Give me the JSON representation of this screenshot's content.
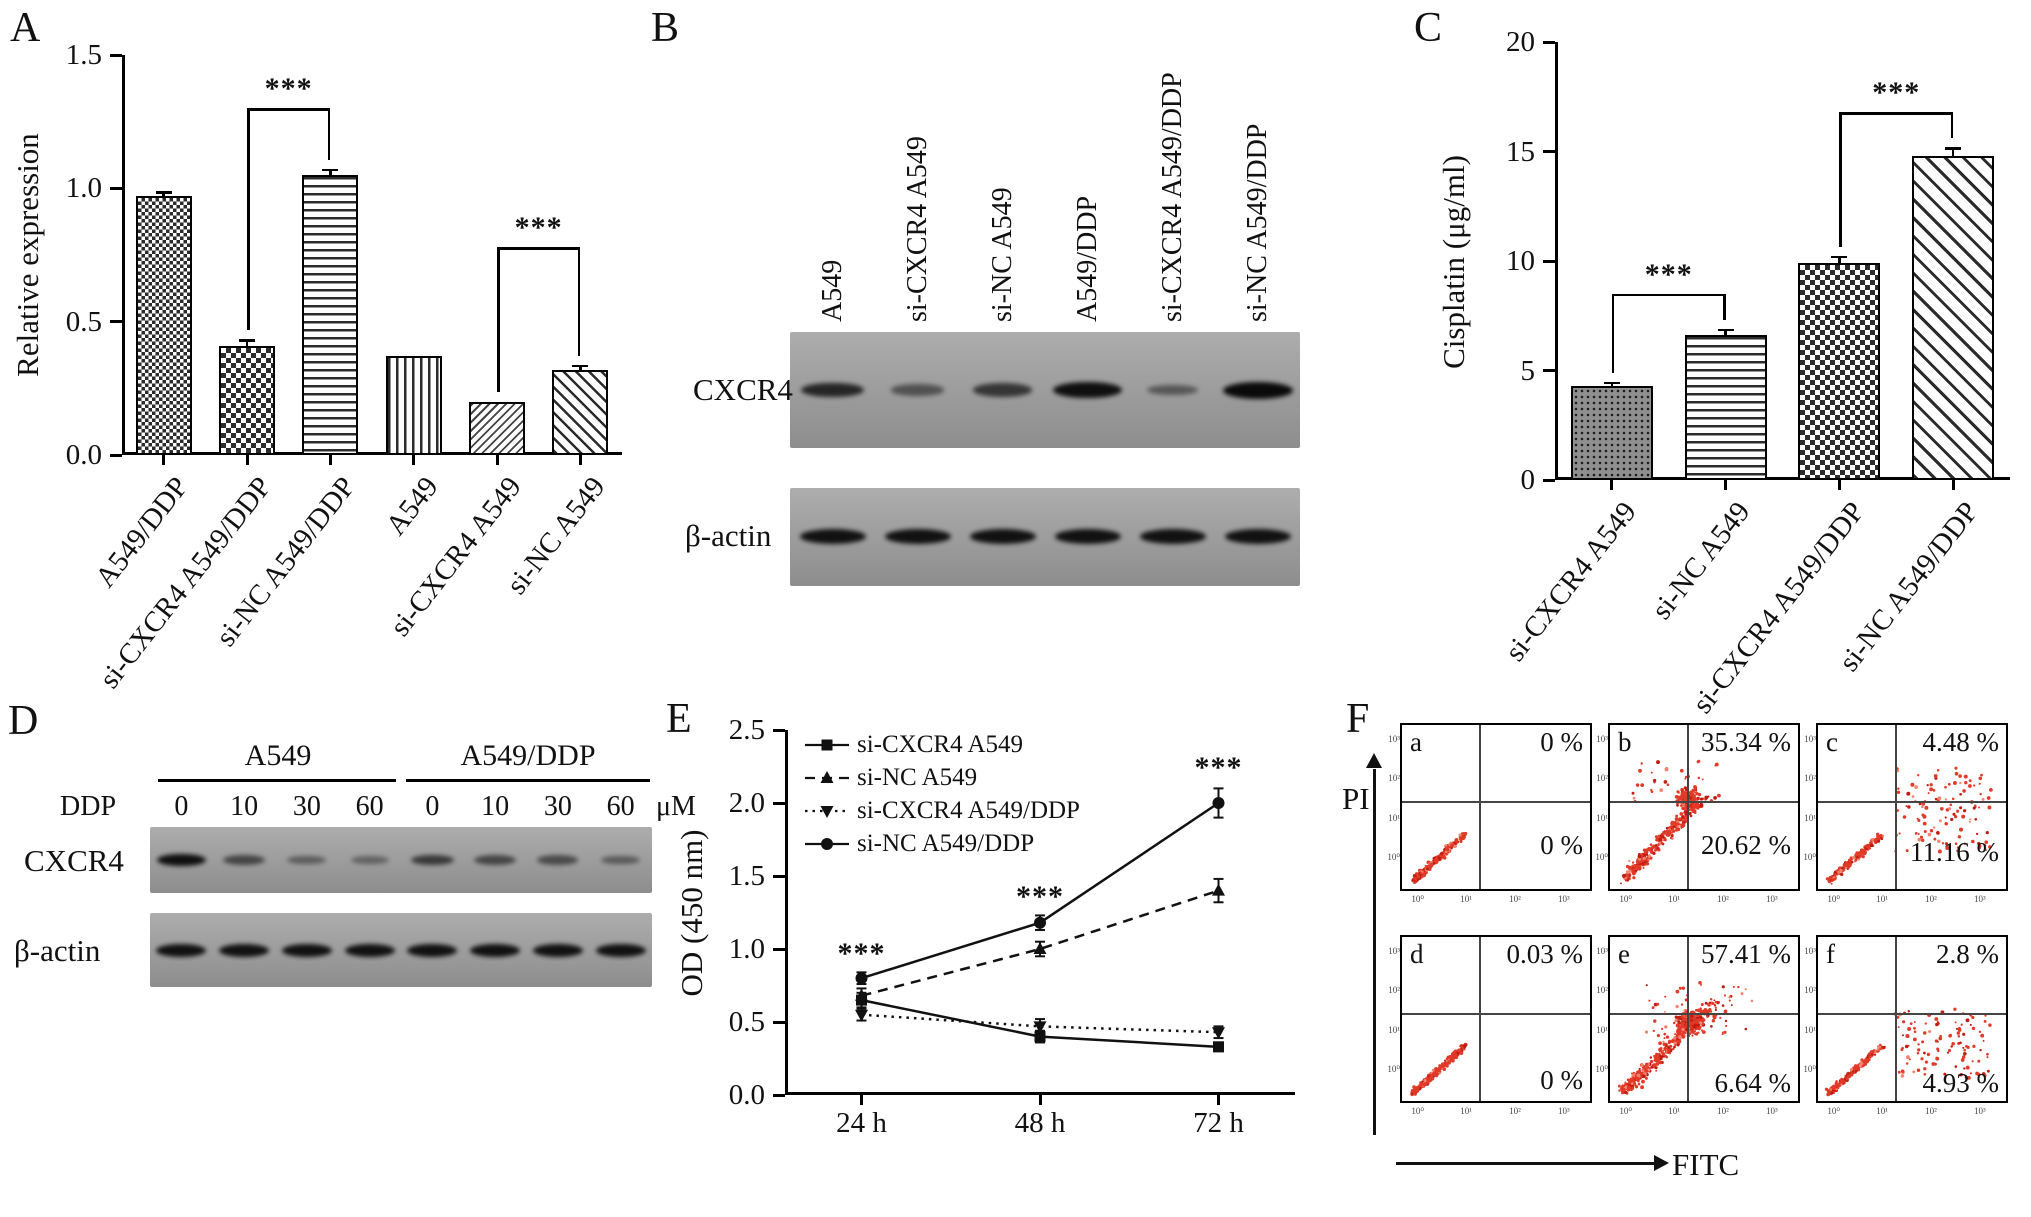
{
  "figure": {
    "panels": {
      "A": {
        "label": "A"
      },
      "B": {
        "label": "B"
      },
      "C": {
        "label": "C"
      },
      "D": {
        "label": "D"
      },
      "E": {
        "label": "E"
      },
      "F": {
        "label": "F"
      }
    }
  },
  "chart_data": [
    {
      "id": "A",
      "type": "bar",
      "ylabel": "Relative expression",
      "ylim": [
        0,
        1.5
      ],
      "ytick_labels": [
        "0.0",
        "0.5",
        "1.0",
        "1.5"
      ],
      "categories": [
        "A549/DDP",
        "si-CXCR4 A549/DDP",
        "si-NC A549/DDP",
        "A549",
        "si-CXCR4 A549",
        "si-NC A549"
      ],
      "values": [
        0.97,
        0.41,
        1.05,
        0.37,
        0.2,
        0.32
      ],
      "errors": [
        0.015,
        0.02,
        0.02,
        0,
        0,
        0.015
      ],
      "patterns": [
        "checker-fine",
        "checker",
        "hlines",
        "vlines",
        "diag-fine",
        "diag"
      ],
      "significance": [
        {
          "a": 1,
          "b": 2,
          "label": "***",
          "y": 1.3
        },
        {
          "a": 4,
          "b": 5,
          "label": "***",
          "y": 0.78
        }
      ]
    },
    {
      "id": "C",
      "type": "bar",
      "ylabel": "Cisplatin (μg/ml)",
      "ylim": [
        0,
        20
      ],
      "ytick_labels": [
        "0",
        "5",
        "10",
        "15",
        "20"
      ],
      "categories": [
        "si-CXCR4 A549",
        "si-NC A549",
        "si-CXCR4 A549/DDP",
        "si-NC A549/DDP"
      ],
      "values": [
        4.3,
        6.6,
        9.9,
        14.8
      ],
      "errors": [
        0.15,
        0.25,
        0.3,
        0.35
      ],
      "patterns": [
        "dots",
        "hlines",
        "checker",
        "diag-wide"
      ],
      "significance": [
        {
          "a": 0,
          "b": 1,
          "label": "***",
          "y": 8.5
        },
        {
          "a": 2,
          "b": 3,
          "label": "***",
          "y": 16.8
        }
      ]
    },
    {
      "id": "E",
      "type": "line",
      "ylabel": "OD (450 nm)",
      "ylim": [
        0,
        2.5
      ],
      "ytick_labels": [
        "0.0",
        "0.5",
        "1.0",
        "1.5",
        "2.0",
        "2.5"
      ],
      "x_categories": [
        "24 h",
        "48 h",
        "72 h"
      ],
      "series": [
        {
          "name": "si-CXCR4 A549",
          "marker": "square",
          "line": "solid",
          "values": [
            0.65,
            0.4,
            0.33
          ],
          "errors": [
            0.05,
            0.04,
            0.03
          ]
        },
        {
          "name": "si-NC A549",
          "marker": "triangle-up",
          "line": "dashed",
          "values": [
            0.68,
            1.0,
            1.4
          ],
          "errors": [
            0.05,
            0.05,
            0.08
          ]
        },
        {
          "name": "si-CXCR4 A549/DDP",
          "marker": "triangle-down",
          "line": "dotted",
          "values": [
            0.55,
            0.47,
            0.43
          ],
          "errors": [
            0.04,
            0.05,
            0.04
          ]
        },
        {
          "name": "si-NC A549/DDP",
          "marker": "circle",
          "line": "solid",
          "values": [
            0.8,
            1.18,
            2.0
          ],
          "errors": [
            0.04,
            0.05,
            0.1
          ]
        }
      ],
      "annotations": [
        {
          "x": 0,
          "y": 0.97,
          "label": "***"
        },
        {
          "x": 1,
          "y": 1.36,
          "label": "***"
        },
        {
          "x": 2,
          "y": 2.25,
          "label": "***"
        }
      ]
    }
  ],
  "blot_B": {
    "lanes": [
      "A549",
      "si-CXCR4 A549",
      "si-NC A549",
      "A549/DDP",
      "si-CXCR4 A549/DDP",
      "si-NC A549/DDP"
    ],
    "rows": [
      {
        "name": "CXCR4",
        "intensities": [
          0.75,
          0.35,
          0.6,
          0.95,
          0.3,
          1.0
        ]
      },
      {
        "name": "β-actin",
        "intensities": [
          0.95,
          0.95,
          0.95,
          0.95,
          0.95,
          0.95
        ]
      }
    ]
  },
  "blot_D": {
    "dose_label": "DDP",
    "unit": "μM",
    "groups": [
      {
        "name": "A549",
        "doses": [
          "0",
          "10",
          "30",
          "60"
        ]
      },
      {
        "name": "A549/DDP",
        "doses": [
          "0",
          "10",
          "30",
          "60"
        ]
      }
    ],
    "rows": [
      {
        "name": "CXCR4",
        "intensities": [
          0.95,
          0.5,
          0.3,
          0.25,
          0.6,
          0.5,
          0.45,
          0.32
        ]
      },
      {
        "name": "β-actin",
        "intensities": [
          0.95,
          0.95,
          0.95,
          0.95,
          0.95,
          0.95,
          0.95,
          0.95
        ]
      }
    ]
  },
  "flow_F": {
    "y_axis_label": "PI",
    "x_axis_label": "FITC",
    "tick_labels": [
      "10⁰",
      "10¹",
      "10²",
      "10³"
    ],
    "panels": [
      {
        "letter": "a",
        "upper_pct": "0 %",
        "lower_pct": "0 %",
        "cluster": "tight-diagonal"
      },
      {
        "letter": "b",
        "upper_pct": "35.34 %",
        "lower_pct": "20.62 %",
        "cluster": "dense-wide"
      },
      {
        "letter": "c",
        "upper_pct": "4.48 %",
        "lower_pct": "11.16 %",
        "cluster": "diagonal-sparse"
      },
      {
        "letter": "d",
        "upper_pct": "0.03 %",
        "lower_pct": "0 %",
        "cluster": "tight-diagonal"
      },
      {
        "letter": "e",
        "upper_pct": "57.41 %",
        "lower_pct": "6.64 %",
        "cluster": "dense-large"
      },
      {
        "letter": "f",
        "upper_pct": "2.8 %",
        "lower_pct": "4.93 %",
        "cluster": "diagonal-sparse-low"
      }
    ]
  },
  "colors": {
    "ink": "#111111",
    "flow_dot": "#e23a28",
    "blot_background": "#9e9e9e"
  }
}
